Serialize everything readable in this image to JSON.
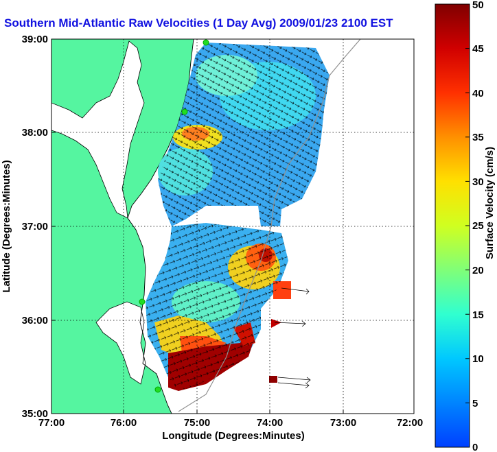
{
  "title": "Southern Mid-Atlantic Raw Velocities (1 Day Avg) 2009/01/23 2100 EST",
  "x_axis": {
    "label": "Longitude (Degrees:Minutes)",
    "ticks": [
      "77:00",
      "76:00",
      "75:00",
      "74:00",
      "73:00",
      "72:00"
    ]
  },
  "y_axis": {
    "label": "Latitude (Degrees:Minutes)",
    "ticks": [
      "39:00",
      "38:00",
      "37:00",
      "36:00",
      "35:00"
    ]
  },
  "colorbar": {
    "label": "Surface Velocity (cm/s)",
    "ticks": [
      "0",
      "5",
      "10",
      "15",
      "20",
      "25",
      "30",
      "35",
      "40",
      "45",
      "50"
    ],
    "range": [
      0,
      50
    ]
  },
  "colors": {
    "land": "#55f5a0",
    "title": "#1010e0",
    "station": "#22dd22"
  },
  "legend_stations": 5
}
